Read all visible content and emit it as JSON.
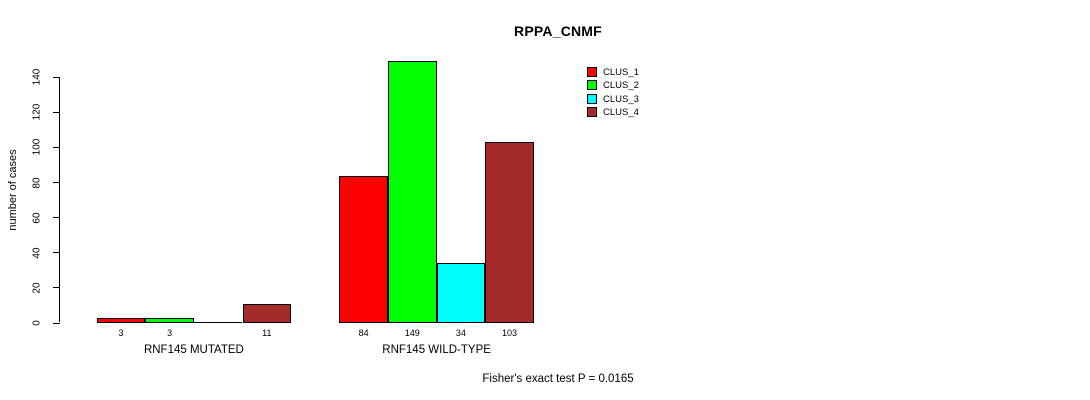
{
  "chart_data": {
    "type": "bar",
    "title": "RPPA_CNMF",
    "ylabel": "number of cases",
    "xlabel": "",
    "ylim": [
      0,
      149
    ],
    "yticks": [
      0,
      20,
      40,
      60,
      80,
      100,
      120,
      140
    ],
    "categories": [
      "RNF145 MUTATED",
      "RNF145 WILD-TYPE"
    ],
    "series": [
      {
        "name": "CLUS_1",
        "color": "#FF0000",
        "values": [
          3,
          84
        ]
      },
      {
        "name": "CLUS_2",
        "color": "#00FF00",
        "values": [
          3,
          149
        ]
      },
      {
        "name": "CLUS_3",
        "color": "#00FFFF",
        "values": [
          0,
          34
        ]
      },
      {
        "name": "CLUS_4",
        "color": "#A52A2A",
        "values": [
          11,
          103
        ]
      }
    ],
    "bar_value_labels": true,
    "zero_bars_drawn_as_line": true,
    "grid": false,
    "legend_position": "top-right-inside",
    "annotation": "Fisher's exact test P = 0.0165"
  }
}
